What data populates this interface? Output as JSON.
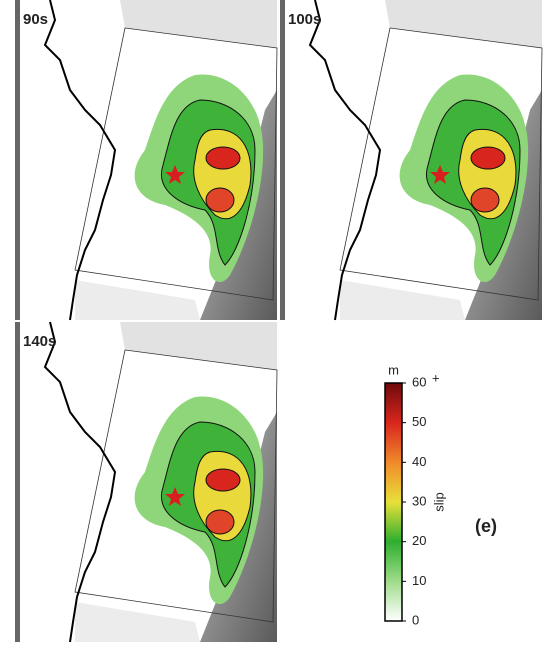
{
  "panels": [
    {
      "label": "90s"
    },
    {
      "label": "100s"
    },
    {
      "label": "140s"
    }
  ],
  "figure_label": "(e)",
  "colorbar": {
    "unit": "m",
    "title": "slip",
    "lim": [
      0,
      60
    ],
    "ticks": [
      0,
      10,
      20,
      30,
      40,
      50,
      60
    ],
    "max_suffix": "+",
    "colors": [
      "#ffffff",
      "#9fdc8a",
      "#2fae2f",
      "#e8e03a",
      "#f08a2a",
      "#d8261e",
      "#6e0a0a"
    ]
  }
}
